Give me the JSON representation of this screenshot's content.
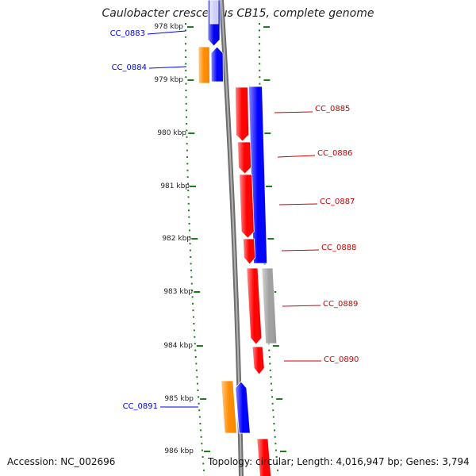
{
  "title": "Caulobacter crescentus CB15, complete genome",
  "accession": "Accession: NC_002696",
  "stats": "Topology: circular; Length: 4,016,947 bp; Genes: 3,794",
  "ticks": [
    "978 kbp",
    "979 kbp",
    "980 kbp",
    "981 kbp",
    "982 kbp",
    "983 kbp",
    "984 kbp",
    "985 kbp",
    "986 kbp"
  ],
  "genes": [
    {
      "id": "CC_0883",
      "strand": "left",
      "color": "#0000ee"
    },
    {
      "id": "CC_0884",
      "strand": "left",
      "color": "#0000ee"
    },
    {
      "id": "CC_0885",
      "strand": "right",
      "color": "#cc0000"
    },
    {
      "id": "CC_0886",
      "strand": "right",
      "color": "#cc0000"
    },
    {
      "id": "CC_0887",
      "strand": "right",
      "color": "#cc0000"
    },
    {
      "id": "CC_0888",
      "strand": "right",
      "color": "#cc0000"
    },
    {
      "id": "CC_0889",
      "strand": "right",
      "color": "#cc0000"
    },
    {
      "id": "CC_0890",
      "strand": "right",
      "color": "#cc0000"
    },
    {
      "id": "CC_0891",
      "strand": "left",
      "color": "#0000ee"
    }
  ],
  "colors": {
    "cds_forward": "#ff0000",
    "gene_track": "#0000ff",
    "orange_feature": "#ff8c00",
    "gray_feature": "#a0a0a0",
    "backbone": "#888888",
    "tick_green": "#1a7f1a"
  }
}
